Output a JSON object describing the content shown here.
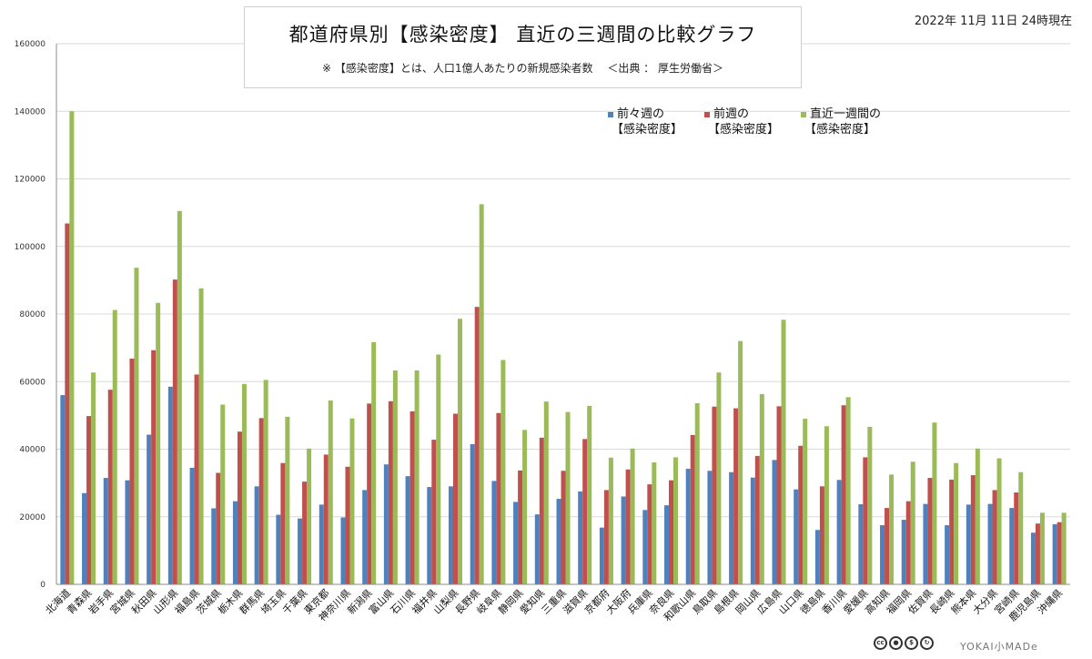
{
  "header": {
    "date": "2022年 11月 11日 24時現在",
    "title": "都道府県別【感染密度】 直近の三週間の比較グラフ",
    "subtitle": "※ 【感染密度】とは、人口1億人あたりの新規感染者数　 ＜出典 ： 厚生労働省＞"
  },
  "footer": {
    "cc_icons": [
      "cc-icon",
      "by-icon",
      "nc-icon",
      "sa-icon"
    ],
    "brand": "YOKAI小MADe"
  },
  "colors": {
    "s1": "#4f81bd",
    "s2": "#c0504d",
    "s3": "#9bbb59"
  },
  "chart_data": {
    "type": "bar",
    "ylim": [
      0,
      160000
    ],
    "yticks": [
      "0",
      "20000",
      "40000",
      "60000",
      "80000",
      "100000",
      "120000",
      "140000",
      "160000"
    ],
    "grid": true,
    "legend_position": "top-right",
    "categories": [
      "北海道",
      "青森県",
      "岩手県",
      "宮城県",
      "秋田県",
      "山形県",
      "福島県",
      "茨城県",
      "栃木県",
      "群馬県",
      "埼玉県",
      "千葉県",
      "東京都",
      "神奈川県",
      "新潟県",
      "富山県",
      "石川県",
      "福井県",
      "山梨県",
      "長野県",
      "岐阜県",
      "静岡県",
      "愛知県",
      "三重県",
      "滋賀県",
      "京都府",
      "大阪府",
      "兵庫県",
      "奈良県",
      "和歌山県",
      "鳥取県",
      "島根県",
      "岡山県",
      "広島県",
      "山口県",
      "徳島県",
      "香川県",
      "愛媛県",
      "高知県",
      "福岡県",
      "佐賀県",
      "長崎県",
      "熊本県",
      "大分県",
      "宮崎県",
      "鹿児島県",
      "沖縄県"
    ],
    "series": [
      {
        "name_line1": "前々週の",
        "name_line2": "【感染密度】",
        "values": [
          56000,
          27000,
          31500,
          30800,
          44300,
          58500,
          34500,
          22500,
          24600,
          29000,
          20600,
          19500,
          23600,
          19800,
          27900,
          35500,
          32000,
          28800,
          29000,
          41500,
          30600,
          24400,
          20700,
          25300,
          27500,
          16800,
          26000,
          22000,
          23400,
          34200,
          33600,
          33200,
          31600,
          36800,
          28100,
          16100,
          30900,
          23700,
          17500,
          19100,
          23800,
          17500,
          23600,
          23800,
          22600,
          15300,
          17800
        ]
      },
      {
        "name_line1": "前週の",
        "name_line2": "【感染密度】",
        "values": [
          106800,
          49800,
          57600,
          66800,
          69300,
          90200,
          62100,
          33000,
          45200,
          49200,
          35900,
          30400,
          38400,
          34800,
          53500,
          54200,
          51200,
          42800,
          50500,
          82100,
          50700,
          33700,
          43400,
          33600,
          43000,
          27900,
          34000,
          29600,
          30800,
          44200,
          52600,
          52100,
          38000,
          52700,
          41000,
          29000,
          53000,
          37600,
          22600,
          24600,
          31500,
          31000,
          32300,
          27900,
          27200,
          18000,
          18400
        ]
      },
      {
        "name_line1": "直近一週間の",
        "name_line2": "【感染密度】",
        "values": [
          140000,
          62700,
          81200,
          93700,
          83300,
          110500,
          87600,
          53200,
          59300,
          60500,
          49600,
          40200,
          54400,
          49100,
          71700,
          63300,
          63300,
          68000,
          78600,
          112500,
          66400,
          45700,
          54100,
          51000,
          52800,
          37500,
          40200,
          36100,
          37600,
          53600,
          62700,
          72000,
          56300,
          78300,
          49000,
          46800,
          55400,
          46600,
          32500,
          36300,
          47900,
          35900,
          40200,
          37300,
          33200,
          21200,
          21200
        ]
      }
    ]
  }
}
